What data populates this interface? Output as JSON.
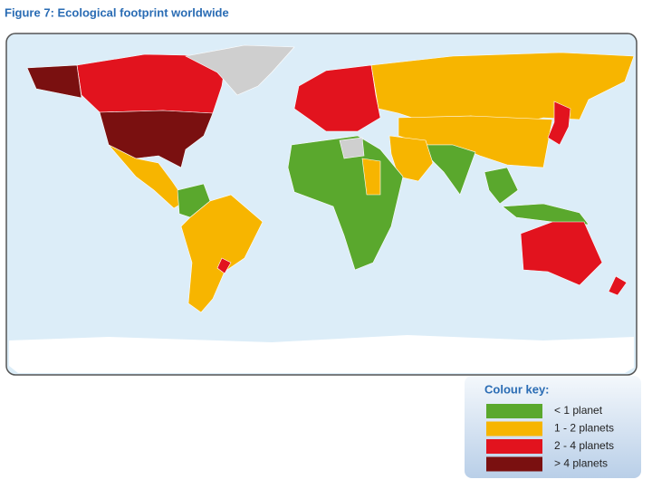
{
  "header": {
    "title": "Figure 7: Ecological footprint worldwide"
  },
  "legend": {
    "title": "Colour key:",
    "items": [
      {
        "label": "< 1 planet",
        "color": "#5aa82d"
      },
      {
        "label": "1 - 2 planets",
        "color": "#f7b500"
      },
      {
        "label": "2 - 4 planets",
        "color": "#e2131e"
      },
      {
        "label": "> 4 planets",
        "color": "#7a1010"
      }
    ]
  }
}
